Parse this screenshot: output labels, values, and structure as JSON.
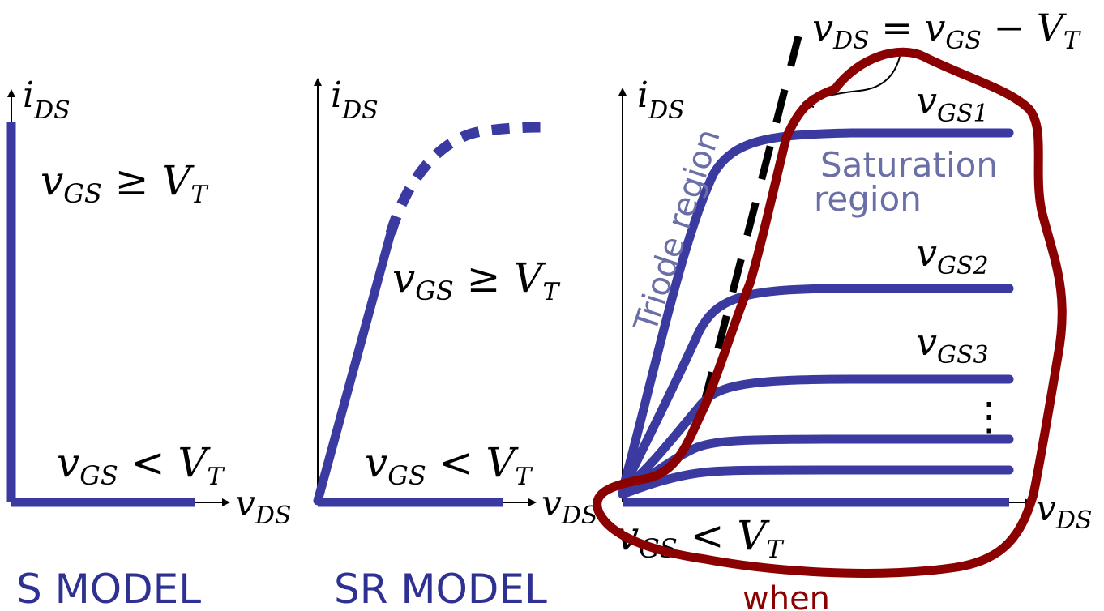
{
  "panel_s": {
    "y_axis_label": {
      "main": "i",
      "sub": "DS"
    },
    "x_axis_label": {
      "main": "v",
      "sub": "DS"
    },
    "on_condition": {
      "main": "v",
      "sub": "GS",
      "rel": " ≥ V",
      "relsub": "T"
    },
    "off_condition": {
      "main": "v",
      "sub": "GS",
      "rel": " < V",
      "relsub": "T"
    },
    "caption": "S MODEL"
  },
  "panel_sr": {
    "y_axis_label": {
      "main": "i",
      "sub": "DS"
    },
    "x_axis_label": {
      "main": "v",
      "sub": "DS"
    },
    "on_condition": {
      "main": "v",
      "sub": "GS",
      "rel": " ≥ V",
      "relsub": "T"
    },
    "off_condition": {
      "main": "v",
      "sub": "GS",
      "rel": " < V",
      "relsub": "T"
    },
    "caption": "SR MODEL"
  },
  "panel_mosfet": {
    "y_axis_label": {
      "main": "i",
      "sub": "DS"
    },
    "x_axis_label": {
      "main": "v",
      "sub": "DS"
    },
    "boundary_equation": {
      "a": "v",
      "asub": "DS",
      "eq": " = v",
      "bsub": "GS",
      "minus": " − V",
      "csub": "T"
    },
    "curve_labels": [
      {
        "main": "v",
        "sub": "GS1"
      },
      {
        "main": "v",
        "sub": "GS2"
      },
      {
        "main": "v",
        "sub": "GS3"
      }
    ],
    "ellipsis": "⋮",
    "triode_label": "Triode region",
    "saturation_label_line1": "Saturation",
    "saturation_label_line2": "region",
    "off_condition": {
      "main": "v",
      "sub": "GS",
      "rel": " < V",
      "relsub": "T"
    },
    "annotation": "when"
  },
  "colors": {
    "curve": "#3a3aa0",
    "caption": "#2e3192",
    "region_text": "#6a6fa6",
    "annotation": "#8b0000"
  }
}
